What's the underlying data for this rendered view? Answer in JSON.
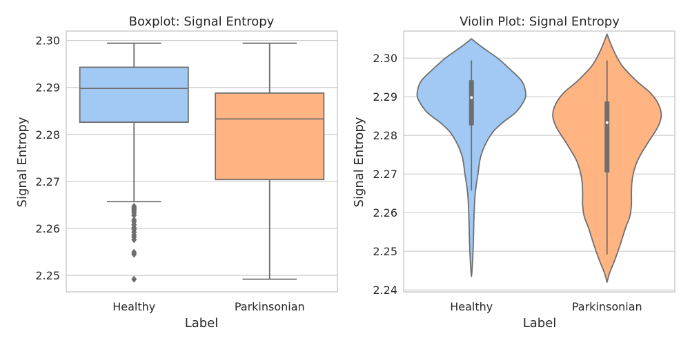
{
  "chart_data": [
    {
      "type": "boxplot",
      "title": "Boxplot: Signal Entropy",
      "xlabel": "Label",
      "ylabel": "Signal Entropy",
      "ylim": [
        2.2465,
        2.302
      ],
      "yticks": [
        "2.25",
        "2.26",
        "2.27",
        "2.28",
        "2.29",
        "2.30"
      ],
      "grid": true,
      "categories": [
        "Healthy",
        "Parkinsonian"
      ],
      "colors": [
        "#a1c9f4",
        "#ffb482"
      ],
      "boxes": [
        {
          "category": "Healthy",
          "whisker_low": 2.2657,
          "q1": 2.2826,
          "median": 2.2898,
          "q3": 2.2943,
          "whisker_high": 2.2994,
          "outliers": [
            2.2647,
            2.2644,
            2.2641,
            2.2637,
            2.2633,
            2.2628,
            2.2618,
            2.2614,
            2.2608,
            2.2602,
            2.2598,
            2.2592,
            2.2586,
            2.2582,
            2.2576,
            2.2549,
            2.2545,
            2.2492
          ]
        },
        {
          "category": "Parkinsonian",
          "whisker_low": 2.2492,
          "q1": 2.2704,
          "median": 2.2833,
          "q3": 2.2888,
          "whisker_high": 2.2994,
          "outliers": []
        }
      ]
    },
    {
      "type": "violin",
      "title": "Violin Plot: Signal Entropy",
      "xlabel": "Label",
      "ylabel": "Signal Entropy",
      "ylim": [
        2.2395,
        2.307
      ],
      "yticks": [
        "2.24",
        "2.25",
        "2.26",
        "2.27",
        "2.28",
        "2.29",
        "2.30"
      ],
      "grid": true,
      "categories": [
        "Healthy",
        "Parkinsonian"
      ],
      "colors": [
        "#a1c9f4",
        "#ffb482"
      ],
      "violins": [
        {
          "category": "Healthy",
          "extent": [
            2.2435,
            2.305
          ],
          "q1": 2.2826,
          "median": 2.2898,
          "q3": 2.2943,
          "whisker_low": 2.2657,
          "whisker_high": 2.2994,
          "density_profile": [
            [
              2.2435,
              0.0
            ],
            [
              2.245,
              0.01
            ],
            [
              2.25,
              0.03
            ],
            [
              2.255,
              0.04
            ],
            [
              2.26,
              0.05
            ],
            [
              2.265,
              0.07
            ],
            [
              2.27,
              0.12
            ],
            [
              2.275,
              0.18
            ],
            [
              2.28,
              0.35
            ],
            [
              2.283,
              0.55
            ],
            [
              2.286,
              0.82
            ],
            [
              2.289,
              0.97
            ],
            [
              2.291,
              1.0
            ],
            [
              2.294,
              0.93
            ],
            [
              2.297,
              0.72
            ],
            [
              2.3,
              0.48
            ],
            [
              2.303,
              0.18
            ],
            [
              2.305,
              0.0
            ]
          ]
        },
        {
          "category": "Parkinsonian",
          "extent": [
            2.242,
            2.3062
          ],
          "q1": 2.2704,
          "median": 2.2833,
          "q3": 2.2888,
          "whisker_low": 2.2492,
          "whisker_high": 2.2994,
          "density_profile": [
            [
              2.242,
              0.0
            ],
            [
              2.2445,
              0.05
            ],
            [
              2.248,
              0.15
            ],
            [
              2.252,
              0.25
            ],
            [
              2.256,
              0.34
            ],
            [
              2.259,
              0.42
            ],
            [
              2.262,
              0.45
            ],
            [
              2.265,
              0.45
            ],
            [
              2.268,
              0.46
            ],
            [
              2.271,
              0.5
            ],
            [
              2.274,
              0.58
            ],
            [
              2.278,
              0.75
            ],
            [
              2.282,
              0.93
            ],
            [
              2.285,
              1.0
            ],
            [
              2.288,
              0.95
            ],
            [
              2.291,
              0.8
            ],
            [
              2.294,
              0.55
            ],
            [
              2.298,
              0.28
            ],
            [
              2.302,
              0.12
            ],
            [
              2.3062,
              0.0
            ]
          ]
        }
      ]
    }
  ]
}
